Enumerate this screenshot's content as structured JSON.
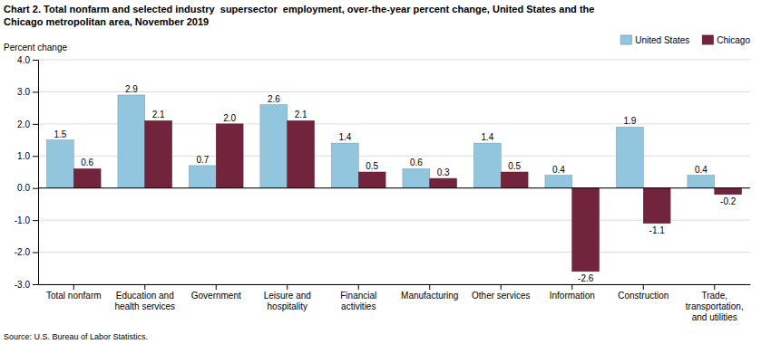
{
  "chart_data": {
    "type": "bar",
    "title": "Chart 2. Total nonfarm and selected industry  supersector  employment, over-the-year percent change, United States and the\nChicago metropolitan area, November 2019",
    "ylabel": "Percent change",
    "source": "Source: U.S. Bureau of Labor Statistics.",
    "categories": [
      "Total nonfarm",
      "Education and\nhealth services",
      "Government",
      "Leisure and\nhospitality",
      "Financial\nactivities",
      "Manufacturing",
      "Other services",
      "Information",
      "Construction",
      "Trade,\ntransportation,\nand utilities"
    ],
    "series": [
      {
        "name": "United States",
        "color": "#92c5de",
        "values": [
          1.5,
          2.9,
          0.7,
          2.6,
          1.4,
          0.6,
          1.4,
          0.4,
          1.9,
          0.4
        ]
      },
      {
        "name": "Chicago",
        "color": "#72243d",
        "values": [
          0.6,
          2.1,
          2.0,
          2.1,
          0.5,
          0.3,
          0.5,
          -2.6,
          -1.1,
          -0.2
        ],
        "value_labels": [
          "0.6",
          "2.1",
          "2.0",
          "2.1",
          "0.5",
          "0.3",
          "0.5",
          "-2.6",
          "-1.1",
          "-0.2"
        ]
      }
    ],
    "ylim": [
      -3.0,
      4.0
    ],
    "yticks": [
      {
        "value": -3.0,
        "label": "-3.0"
      },
      {
        "value": -2.0,
        "label": "-2.0"
      },
      {
        "value": -1.0,
        "label": "-1.0"
      },
      {
        "value": 0.0,
        "label": "0.0"
      },
      {
        "value": 1.0,
        "label": "1.0"
      },
      {
        "value": 2.0,
        "label": "2.0"
      },
      {
        "value": 3.0,
        "label": "3.0"
      },
      {
        "value": 4.0,
        "label": "4.0"
      }
    ],
    "grid": true,
    "legend": "top-right",
    "data_labels": true
  }
}
